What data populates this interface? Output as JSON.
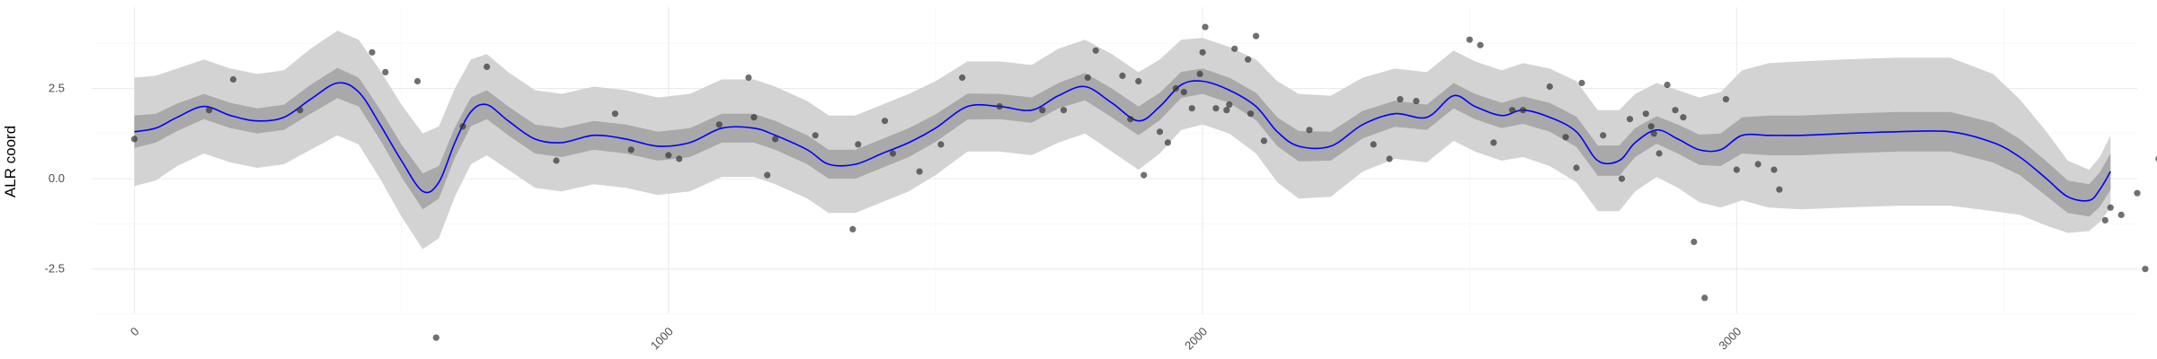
{
  "chart_data": {
    "type": "scatter",
    "title": "",
    "xlabel": "",
    "ylabel": "ALR coord",
    "xlim": [
      -80,
      3750
    ],
    "ylim": [
      -3.75,
      4.75
    ],
    "x_ticks": [
      0,
      1000,
      2000,
      3000
    ],
    "x_tick_labels": [
      "0",
      "1000",
      "2000",
      "3000"
    ],
    "y_ticks": [
      -2.5,
      0.0,
      2.5
    ],
    "y_tick_labels": [
      "-2.5",
      "0.0",
      "2.5"
    ],
    "grid": true,
    "legend": "none",
    "colors": {
      "line": "#0000ff",
      "points": "#333333",
      "inner_band": "#a9a9a9",
      "outer_band": "#d3d3d3",
      "grid_major": "#ebebeb",
      "grid_minor": "#f5f5f5"
    },
    "series": [
      {
        "kind": "smooth",
        "x": [
          0,
          40,
          80,
          130,
          180,
          230,
          280,
          330,
          380,
          420,
          460,
          500,
          540,
          570,
          600,
          630,
          660,
          700,
          750,
          800,
          860,
          920,
          980,
          1040,
          1100,
          1160,
          1200,
          1260,
          1300,
          1350,
          1400,
          1450,
          1500,
          1560,
          1620,
          1680,
          1730,
          1780,
          1830,
          1880,
          1920,
          1960,
          2000,
          2050,
          2100,
          2140,
          2180,
          2240,
          2300,
          2360,
          2420,
          2470,
          2510,
          2560,
          2600,
          2650,
          2700,
          2740,
          2780,
          2810,
          2850,
          2890,
          2930,
          2970,
          3010,
          3060,
          3120,
          3200,
          3300,
          3400,
          3480,
          3530,
          3580,
          3620,
          3660,
          3680,
          3700
        ],
        "y": [
          1.3,
          1.4,
          1.7,
          2.0,
          1.75,
          1.6,
          1.7,
          2.2,
          2.65,
          2.4,
          1.5,
          0.5,
          -0.35,
          -0.1,
          1.0,
          1.85,
          2.05,
          1.6,
          1.1,
          1.0,
          1.2,
          1.1,
          0.9,
          1.0,
          1.4,
          1.4,
          1.2,
          0.8,
          0.4,
          0.4,
          0.7,
          1.0,
          1.4,
          2.0,
          2.0,
          1.9,
          2.3,
          2.55,
          2.1,
          1.6,
          2.0,
          2.6,
          2.7,
          2.45,
          2.0,
          1.3,
          0.9,
          0.9,
          1.5,
          1.8,
          1.7,
          2.3,
          2.0,
          1.75,
          1.9,
          1.7,
          1.3,
          0.5,
          0.5,
          1.0,
          1.35,
          1.1,
          0.8,
          0.8,
          1.2,
          1.2,
          1.2,
          1.25,
          1.3,
          1.3,
          1.0,
          0.6,
          0.0,
          -0.5,
          -0.6,
          -0.3,
          0.2
        ],
        "inner_half_width": [
          0.45,
          0.4,
          0.38,
          0.35,
          0.35,
          0.35,
          0.35,
          0.4,
          0.42,
          0.4,
          0.42,
          0.45,
          0.5,
          0.45,
          0.42,
          0.4,
          0.4,
          0.4,
          0.4,
          0.4,
          0.4,
          0.4,
          0.4,
          0.4,
          0.4,
          0.4,
          0.4,
          0.4,
          0.4,
          0.4,
          0.4,
          0.4,
          0.38,
          0.36,
          0.35,
          0.35,
          0.35,
          0.38,
          0.4,
          0.4,
          0.38,
          0.36,
          0.35,
          0.35,
          0.38,
          0.4,
          0.42,
          0.4,
          0.38,
          0.36,
          0.35,
          0.35,
          0.35,
          0.35,
          0.38,
          0.4,
          0.42,
          0.42,
          0.42,
          0.4,
          0.38,
          0.4,
          0.42,
          0.45,
          0.5,
          0.55,
          0.55,
          0.55,
          0.55,
          0.55,
          0.55,
          0.5,
          0.48,
          0.45,
          0.45,
          0.48,
          0.5
        ],
        "outer_half_width": [
          1.5,
          1.45,
          1.35,
          1.3,
          1.3,
          1.3,
          1.3,
          1.4,
          1.45,
          1.45,
          1.5,
          1.55,
          1.6,
          1.55,
          1.5,
          1.45,
          1.4,
          1.35,
          1.35,
          1.35,
          1.35,
          1.35,
          1.35,
          1.35,
          1.35,
          1.35,
          1.35,
          1.35,
          1.35,
          1.35,
          1.35,
          1.35,
          1.3,
          1.25,
          1.25,
          1.25,
          1.3,
          1.3,
          1.35,
          1.35,
          1.3,
          1.25,
          1.2,
          1.2,
          1.3,
          1.4,
          1.45,
          1.4,
          1.3,
          1.25,
          1.25,
          1.25,
          1.25,
          1.25,
          1.3,
          1.35,
          1.4,
          1.4,
          1.4,
          1.35,
          1.3,
          1.35,
          1.45,
          1.6,
          1.8,
          2.0,
          2.05,
          2.05,
          2.05,
          2.05,
          1.9,
          1.6,
          1.3,
          1.0,
          0.85,
          0.9,
          1.0
        ]
      },
      {
        "kind": "points",
        "x": [
          0,
          140,
          185,
          310,
          445,
          470,
          530,
          565,
          615,
          660,
          790,
          900,
          930,
          1000,
          1020,
          1095,
          1150,
          1160,
          1185,
          1200,
          1275,
          1345,
          1355,
          1405,
          1420,
          1470,
          1510,
          1550,
          1620,
          1700,
          1740,
          1785,
          1800,
          1850,
          1865,
          1880,
          1890,
          1920,
          1935,
          1950,
          1965,
          1980,
          1995,
          2000,
          2005,
          2025,
          2045,
          2050,
          2060,
          2085,
          2090,
          2100,
          2115,
          2200,
          2320,
          2350,
          2370,
          2400,
          2500,
          2520,
          2545,
          2580,
          2600,
          2650,
          2680,
          2700,
          2710,
          2750,
          2785,
          2800,
          2830,
          2840,
          2845,
          2855,
          2870,
          2885,
          2900,
          2920,
          2940,
          2980,
          3000,
          3040,
          3070,
          3080,
          3690,
          3700,
          3720,
          3750,
          3765,
          3790,
          3795
        ],
        "y": [
          1.1,
          1.9,
          2.75,
          1.9,
          3.5,
          2.95,
          2.7,
          -4.4,
          1.45,
          3.1,
          0.5,
          1.8,
          0.8,
          0.65,
          0.55,
          1.5,
          2.8,
          1.7,
          0.1,
          1.1,
          1.2,
          -1.4,
          0.95,
          1.6,
          0.7,
          0.2,
          0.95,
          2.8,
          2.0,
          1.9,
          1.9,
          2.8,
          3.55,
          2.85,
          1.65,
          2.7,
          0.1,
          1.3,
          1.0,
          2.5,
          2.4,
          1.95,
          2.9,
          3.5,
          4.2,
          1.95,
          1.9,
          2.05,
          3.6,
          3.3,
          1.8,
          3.95,
          1.05,
          1.35,
          0.95,
          0.55,
          2.2,
          2.15,
          3.85,
          3.7,
          1.0,
          1.9,
          1.9,
          2.55,
          1.15,
          0.3,
          2.65,
          1.2,
          0.0,
          1.65,
          1.8,
          1.45,
          1.25,
          0.7,
          2.6,
          1.9,
          1.7,
          -1.75,
          -3.3,
          2.2,
          0.25,
          0.4,
          0.25,
          -0.3,
          -1.15,
          -0.8,
          -1.0,
          -0.4,
          -2.5,
          0.55,
          0.0
        ]
      }
    ]
  }
}
